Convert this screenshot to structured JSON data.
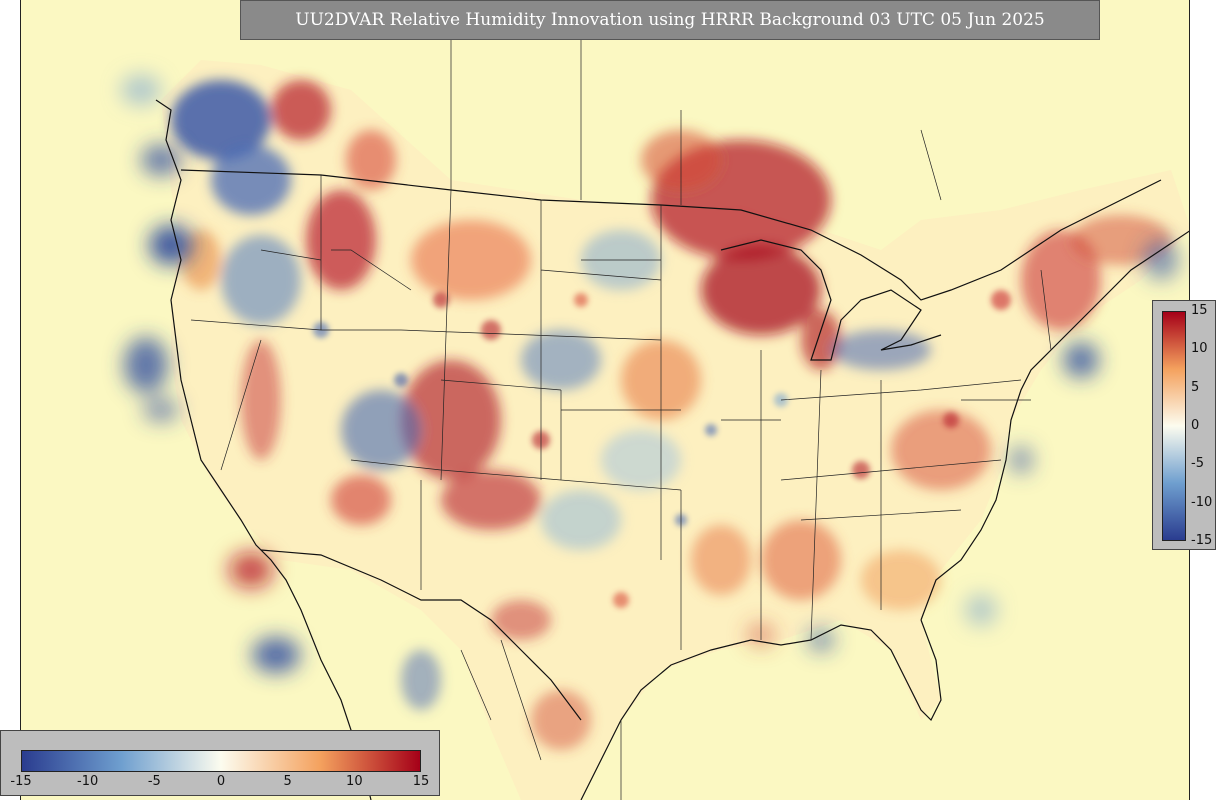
{
  "title": "UU2DVAR Relative Humidity Innovation using HRRR Background 03 UTC 05 Jun 2025",
  "colorbar": {
    "min": -15,
    "max": 15,
    "tick_labels": [
      "-15",
      "-10",
      "-5",
      "0",
      "5",
      "10",
      "15"
    ],
    "colors": {
      "neg_max": "#2a3c8f",
      "neg_mid": "#6f9fcf",
      "zero": "#fcfcef",
      "pos_mid": "#f4a15e",
      "pos_max": "#a50018",
      "background": "#fbf8c0"
    }
  }
}
